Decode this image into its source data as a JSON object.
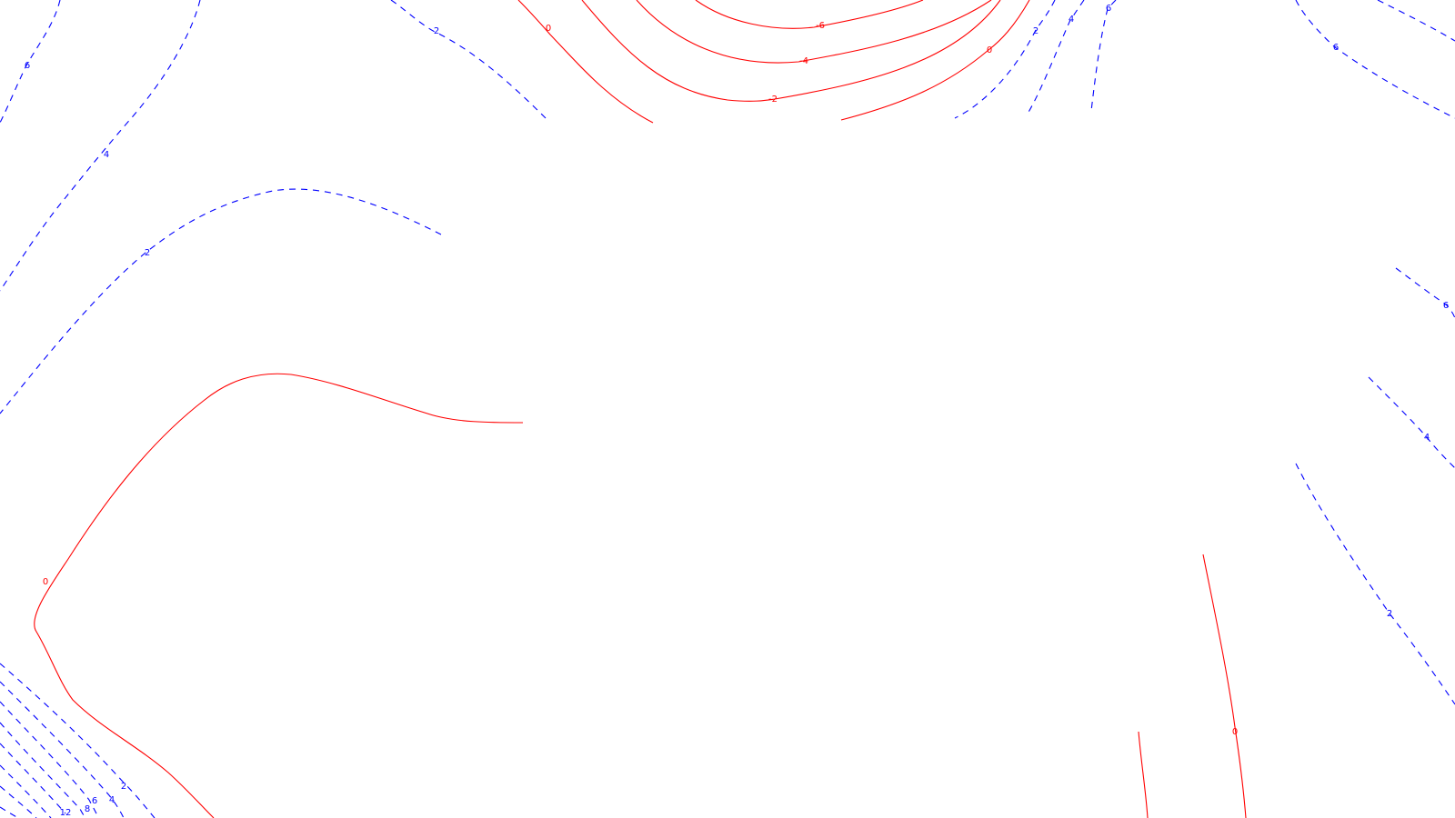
{
  "colors": {
    "positive": "#0000ff",
    "negative": "#ff0000",
    "background": "#ffffff"
  },
  "contour_levels": {
    "positive_style": "dashed",
    "negative_style": "solid"
  },
  "labels": {
    "p6_top_left": "6",
    "p4_left": "4",
    "p2_top_mid": "2",
    "p2_mid_left": "2",
    "n0_top": "0",
    "n6_top": "-6",
    "n4_top": "-4",
    "n2_top": "-2",
    "n0_top_right": "0",
    "p2_top_right": "2",
    "p4_top_right": "4",
    "p6_top_right": "6",
    "p6_far_top_right": "6",
    "p6_right": "6",
    "p4_right": "4",
    "p2_right": "2",
    "n0_left": "0",
    "n0_bottom_right": "0",
    "p2_bottom_left": "2",
    "p4_bottom_left": "4",
    "p6_bottom_left": "6",
    "p8_bottom_left": "8",
    "p12_bottom_left": "12"
  }
}
